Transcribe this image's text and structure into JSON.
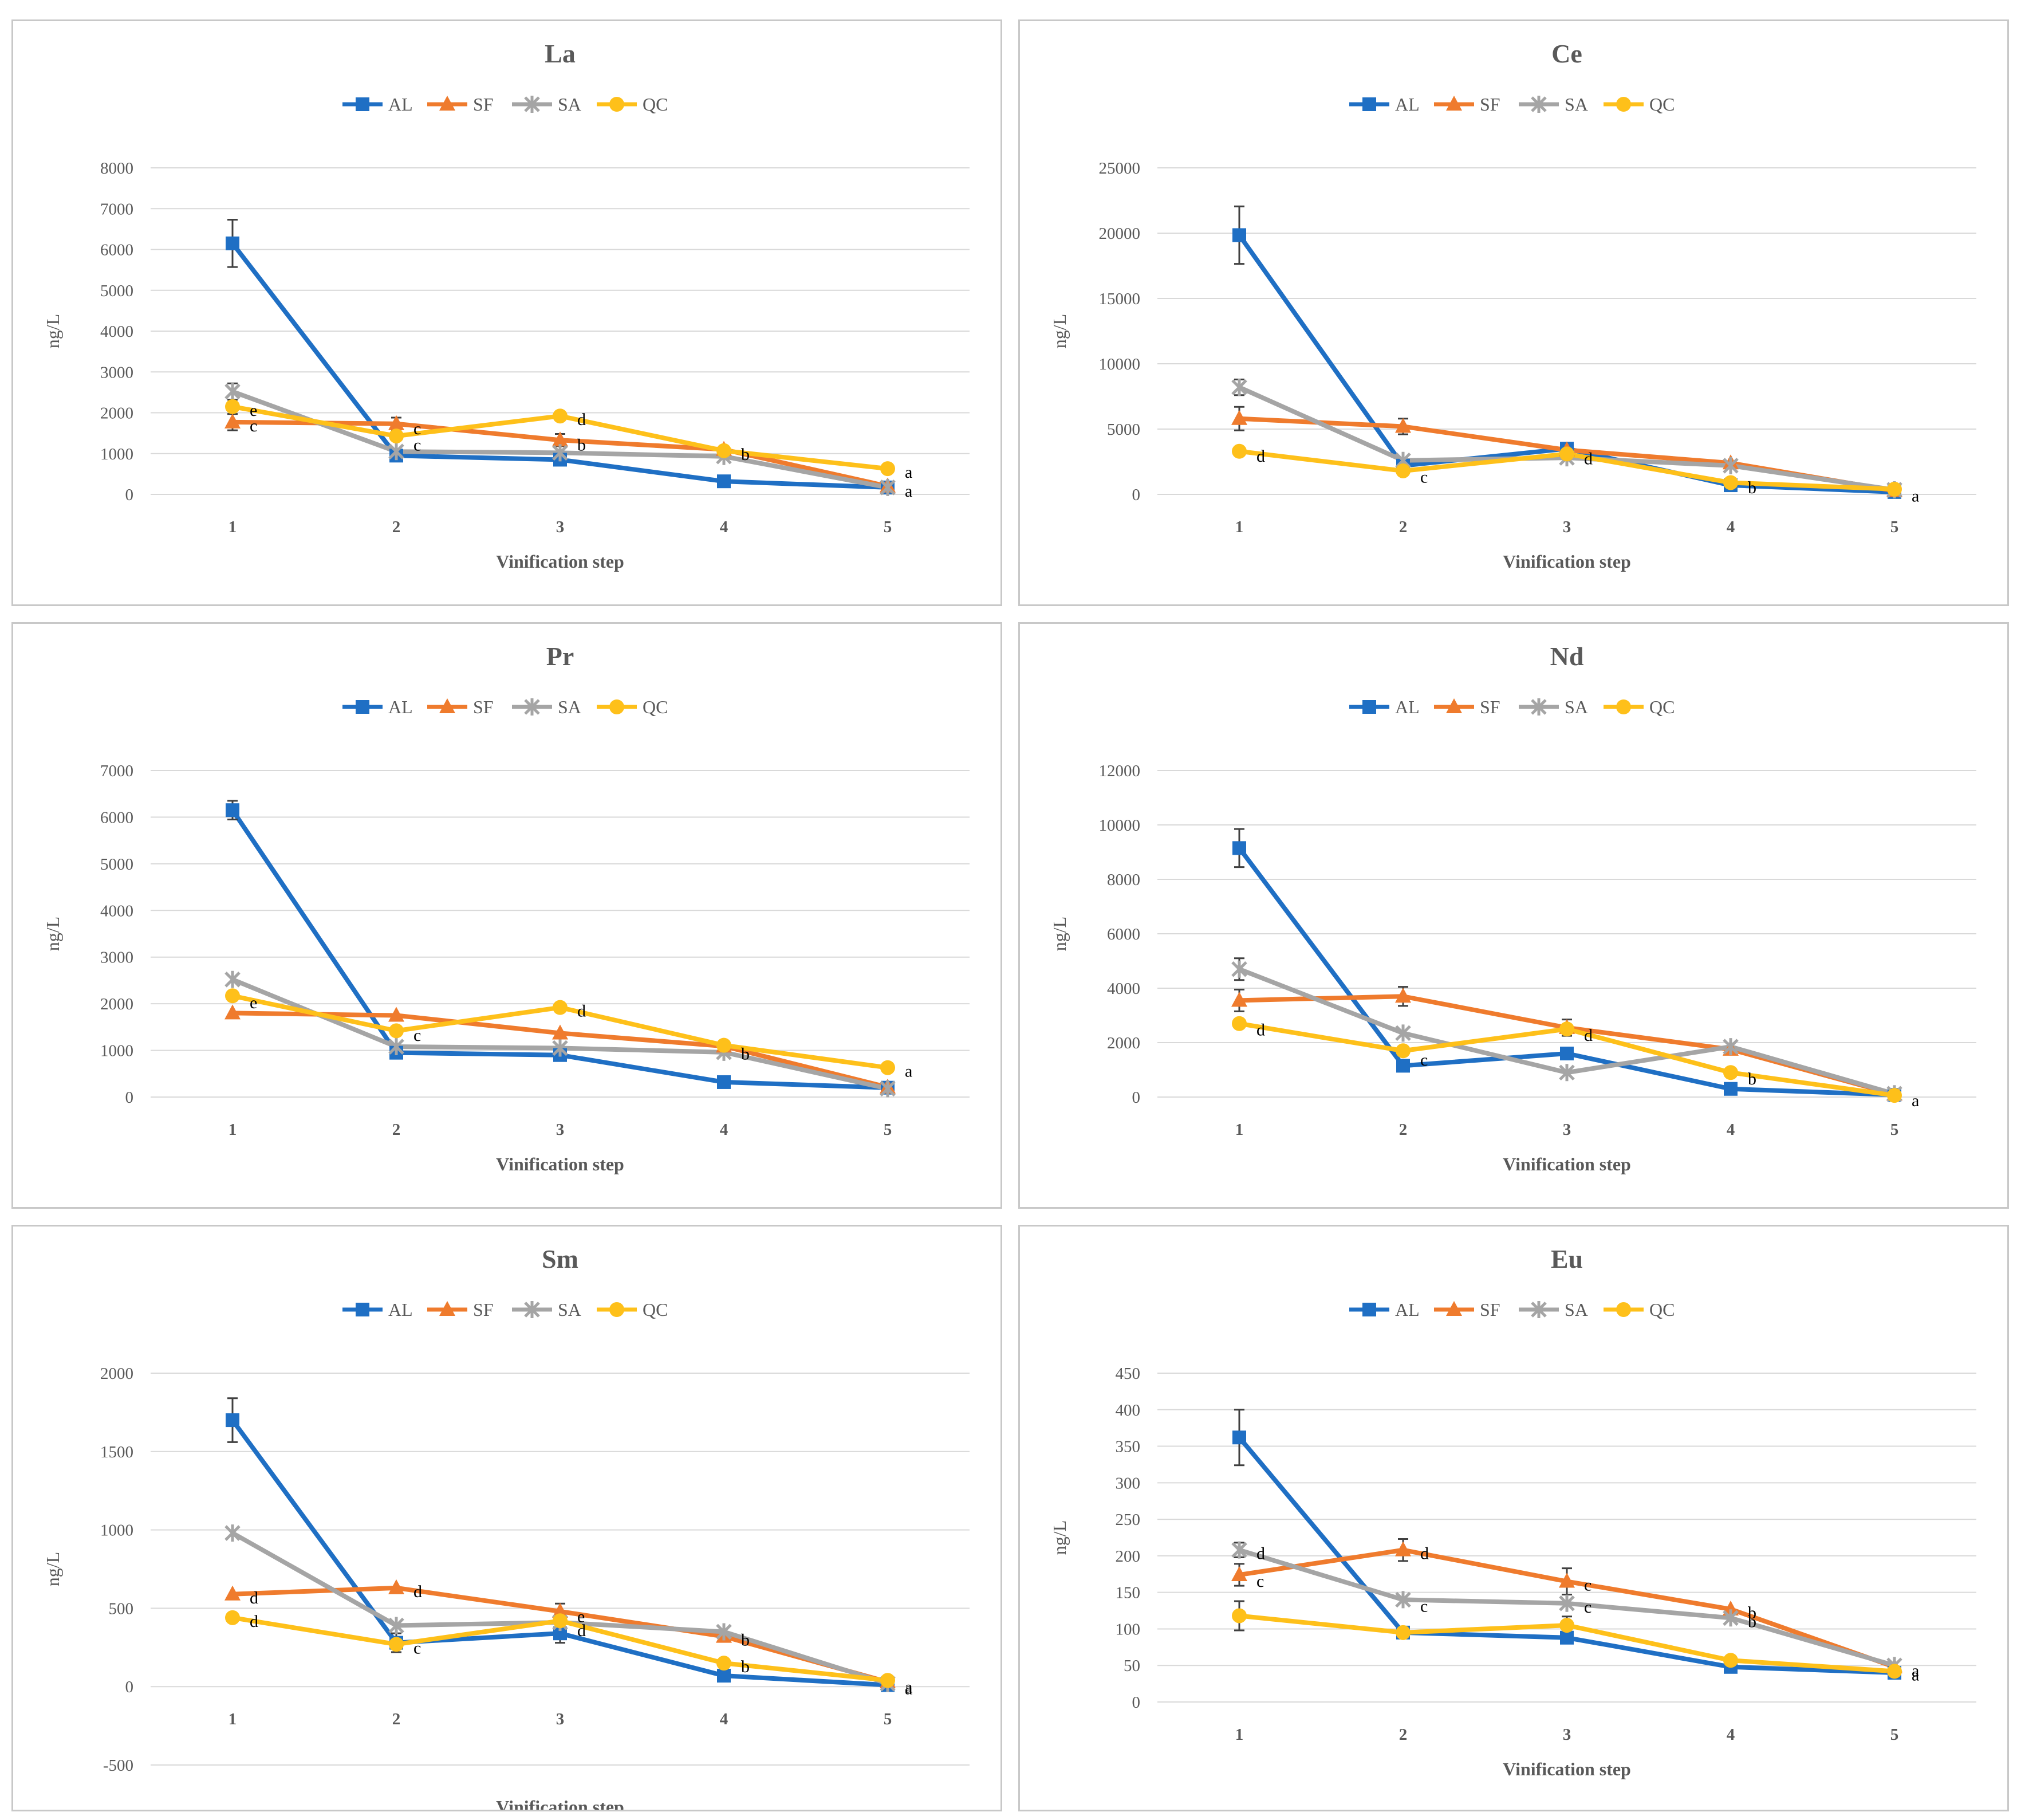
{
  "colors": {
    "AL": "#1f6fc4",
    "SF": "#ef7b2d",
    "SA": "#a5a5a5",
    "QC": "#fec01a",
    "grid": "#d9d9d9",
    "text": "#595959",
    "error": "#404040"
  },
  "chart_data": [
    {
      "type": "line",
      "title": "La",
      "xlabel": "Vinification step",
      "ylabel": "ng/L",
      "categories": [
        "1",
        "2",
        "3",
        "4",
        "5"
      ],
      "ylim": [
        0,
        8000
      ],
      "yticks": [
        0,
        1000,
        2000,
        3000,
        4000,
        5000,
        6000,
        7000,
        8000
      ],
      "series": [
        {
          "name": "AL",
          "marker": "square",
          "values": [
            6150,
            950,
            850,
            320,
            170
          ],
          "errors": [
            580,
            0,
            0,
            0,
            0
          ]
        },
        {
          "name": "SF",
          "marker": "triangle",
          "values": [
            1770,
            1730,
            1330,
            1100,
            200
          ],
          "errors": [
            200,
            150,
            150,
            0,
            0
          ]
        },
        {
          "name": "SA",
          "marker": "star",
          "values": [
            2520,
            1050,
            1020,
            930,
            170
          ],
          "errors": [
            200,
            0,
            0,
            0,
            0
          ]
        },
        {
          "name": "QC",
          "marker": "circle",
          "values": [
            2150,
            1430,
            1920,
            1070,
            630
          ],
          "errors": [
            0,
            0,
            0,
            0,
            0
          ]
        }
      ],
      "annotations": [
        {
          "x": 1,
          "y": 2150,
          "text": "e"
        },
        {
          "x": 1,
          "y": 1770,
          "text": "c"
        },
        {
          "x": 2,
          "y": 1700,
          "text": "c"
        },
        {
          "x": 2,
          "y": 1300,
          "text": "c"
        },
        {
          "x": 3,
          "y": 1920,
          "text": "d"
        },
        {
          "x": 3,
          "y": 1300,
          "text": "b"
        },
        {
          "x": 4,
          "y": 1070,
          "text": "b"
        },
        {
          "x": 5,
          "y": 630,
          "text": "a"
        },
        {
          "x": 5,
          "y": 170,
          "text": "a"
        }
      ]
    },
    {
      "type": "line",
      "title": "Ce",
      "xlabel": "Vinification step",
      "ylabel": "ng/L",
      "categories": [
        "1",
        "2",
        "3",
        "4",
        "5"
      ],
      "ylim": [
        0,
        25000
      ],
      "yticks": [
        0,
        5000,
        10000,
        15000,
        20000,
        25000
      ],
      "series": [
        {
          "name": "AL",
          "marker": "square",
          "values": [
            19850,
            2200,
            3500,
            700,
            180
          ],
          "errors": [
            2200,
            0,
            0,
            0,
            0
          ]
        },
        {
          "name": "SF",
          "marker": "triangle",
          "values": [
            5800,
            5200,
            3400,
            2400,
            280
          ],
          "errors": [
            900,
            600,
            0,
            0,
            0
          ]
        },
        {
          "name": "SA",
          "marker": "star",
          "values": [
            8200,
            2600,
            2800,
            2200,
            350
          ],
          "errors": [
            600,
            0,
            0,
            0,
            0
          ]
        },
        {
          "name": "QC",
          "marker": "circle",
          "values": [
            3300,
            1800,
            3100,
            900,
            400
          ],
          "errors": [
            0,
            0,
            0,
            0,
            0
          ]
        }
      ],
      "annotations": [
        {
          "x": 1,
          "y": 3200,
          "text": "d"
        },
        {
          "x": 2,
          "y": 1600,
          "text": "c"
        },
        {
          "x": 3,
          "y": 3000,
          "text": "d"
        },
        {
          "x": 4,
          "y": 800,
          "text": "b"
        },
        {
          "x": 5,
          "y": 150,
          "text": "a"
        }
      ]
    },
    {
      "type": "line",
      "title": "Pr",
      "xlabel": "Vinification step",
      "ylabel": "ng/L",
      "categories": [
        "1",
        "2",
        "3",
        "4",
        "5"
      ],
      "ylim": [
        0,
        7000
      ],
      "yticks": [
        0,
        1000,
        2000,
        3000,
        4000,
        5000,
        6000,
        7000
      ],
      "series": [
        {
          "name": "AL",
          "marker": "square",
          "values": [
            6150,
            950,
            900,
            320,
            200
          ],
          "errors": [
            200,
            0,
            0,
            0,
            0
          ]
        },
        {
          "name": "SF",
          "marker": "triangle",
          "values": [
            1800,
            1750,
            1370,
            1090,
            210
          ],
          "errors": [
            0,
            0,
            0,
            0,
            0
          ]
        },
        {
          "name": "SA",
          "marker": "star",
          "values": [
            2520,
            1080,
            1050,
            960,
            180
          ],
          "errors": [
            0,
            0,
            0,
            0,
            0
          ]
        },
        {
          "name": "QC",
          "marker": "circle",
          "values": [
            2170,
            1420,
            1920,
            1110,
            630
          ],
          "errors": [
            0,
            0,
            0,
            0,
            0
          ]
        }
      ],
      "annotations": [
        {
          "x": 1,
          "y": 2100,
          "text": "e"
        },
        {
          "x": 2,
          "y": 1400,
          "text": "c"
        },
        {
          "x": 3,
          "y": 1920,
          "text": "d"
        },
        {
          "x": 4,
          "y": 1000,
          "text": "b"
        },
        {
          "x": 5,
          "y": 630,
          "text": "a"
        }
      ]
    },
    {
      "type": "line",
      "title": "Nd",
      "xlabel": "Vinification step",
      "ylabel": "ng/L",
      "categories": [
        "1",
        "2",
        "3",
        "4",
        "5"
      ],
      "ylim": [
        0,
        12000
      ],
      "yticks": [
        0,
        2000,
        4000,
        6000,
        8000,
        10000,
        12000
      ],
      "series": [
        {
          "name": "AL",
          "marker": "square",
          "values": [
            9150,
            1150,
            1600,
            300,
            80
          ],
          "errors": [
            700,
            0,
            0,
            0,
            0
          ]
        },
        {
          "name": "SF",
          "marker": "triangle",
          "values": [
            3550,
            3700,
            2550,
            1750,
            100
          ],
          "errors": [
            400,
            350,
            300,
            0,
            0
          ]
        },
        {
          "name": "SA",
          "marker": "star",
          "values": [
            4700,
            2350,
            900,
            1850,
            120
          ],
          "errors": [
            400,
            0,
            0,
            0,
            0
          ]
        },
        {
          "name": "QC",
          "marker": "circle",
          "values": [
            2700,
            1700,
            2500,
            900,
            60
          ],
          "errors": [
            0,
            0,
            0,
            0,
            0
          ]
        }
      ],
      "annotations": [
        {
          "x": 1,
          "y": 2600,
          "text": "d"
        },
        {
          "x": 2,
          "y": 1500,
          "text": "c"
        },
        {
          "x": 3,
          "y": 2400,
          "text": "d"
        },
        {
          "x": 4,
          "y": 800,
          "text": "b"
        },
        {
          "x": 5,
          "y": 0,
          "text": "a"
        }
      ]
    },
    {
      "type": "line",
      "title": "Sm",
      "xlabel": "Vinification step",
      "ylabel": "ng/L",
      "categories": [
        "1",
        "2",
        "3",
        "4",
        "5"
      ],
      "ylim": [
        -500,
        2000
      ],
      "yticks": [
        -500,
        0,
        500,
        1000,
        1500,
        2000
      ],
      "series": [
        {
          "name": "AL",
          "marker": "square",
          "values": [
            1700,
            280,
            340,
            70,
            10
          ],
          "errors": [
            140,
            60,
            60,
            0,
            0
          ]
        },
        {
          "name": "SF",
          "marker": "triangle",
          "values": [
            590,
            630,
            480,
            320,
            30
          ],
          "errors": [
            0,
            0,
            50,
            0,
            0
          ]
        },
        {
          "name": "SA",
          "marker": "star",
          "values": [
            980,
            390,
            410,
            350,
            20
          ],
          "errors": [
            0,
            0,
            0,
            0,
            0
          ]
        },
        {
          "name": "QC",
          "marker": "circle",
          "values": [
            440,
            270,
            420,
            150,
            40
          ],
          "errors": [
            0,
            0,
            0,
            0,
            0
          ]
        }
      ],
      "annotations": [
        {
          "x": 1,
          "y": 590,
          "text": "d"
        },
        {
          "x": 1,
          "y": 440,
          "text": "d"
        },
        {
          "x": 2,
          "y": 630,
          "text": "d"
        },
        {
          "x": 2,
          "y": 270,
          "text": "c"
        },
        {
          "x": 3,
          "y": 470,
          "text": "e"
        },
        {
          "x": 3,
          "y": 380,
          "text": "d"
        },
        {
          "x": 4,
          "y": 320,
          "text": "b"
        },
        {
          "x": 4,
          "y": 150,
          "text": "b"
        },
        {
          "x": 5,
          "y": 20,
          "text": "a"
        },
        {
          "x": 5,
          "y": 10,
          "text": "a"
        }
      ]
    },
    {
      "type": "line",
      "title": "Eu",
      "xlabel": "Vinification step",
      "ylabel": "ng/L",
      "categories": [
        "1",
        "2",
        "3",
        "4",
        "5"
      ],
      "ylim": [
        0,
        450
      ],
      "yticks": [
        0,
        50,
        100,
        150,
        200,
        250,
        300,
        350,
        400,
        450
      ],
      "series": [
        {
          "name": "AL",
          "marker": "square",
          "values": [
            362,
            95,
            88,
            48,
            40
          ],
          "errors": [
            38,
            0,
            0,
            0,
            0
          ]
        },
        {
          "name": "SF",
          "marker": "triangle",
          "values": [
            174,
            208,
            165,
            127,
            48
          ],
          "errors": [
            15,
            15,
            18,
            0,
            0
          ]
        },
        {
          "name": "SA",
          "marker": "star",
          "values": [
            208,
            140,
            135,
            115,
            50
          ],
          "errors": [
            10,
            0,
            0,
            0,
            0
          ]
        },
        {
          "name": "QC",
          "marker": "circle",
          "values": [
            118,
            95,
            105,
            57,
            42
          ],
          "errors": [
            20,
            0,
            12,
            0,
            0
          ]
        }
      ],
      "annotations": [
        {
          "x": 1,
          "y": 208,
          "text": "d"
        },
        {
          "x": 1,
          "y": 170,
          "text": "c"
        },
        {
          "x": 2,
          "y": 208,
          "text": "d"
        },
        {
          "x": 2,
          "y": 136,
          "text": "c"
        },
        {
          "x": 3,
          "y": 165,
          "text": "c"
        },
        {
          "x": 3,
          "y": 135,
          "text": "c"
        },
        {
          "x": 4,
          "y": 127,
          "text": "b"
        },
        {
          "x": 4,
          "y": 115,
          "text": "b"
        },
        {
          "x": 5,
          "y": 48,
          "text": "a"
        },
        {
          "x": 5,
          "y": 42,
          "text": "a"
        }
      ]
    }
  ]
}
